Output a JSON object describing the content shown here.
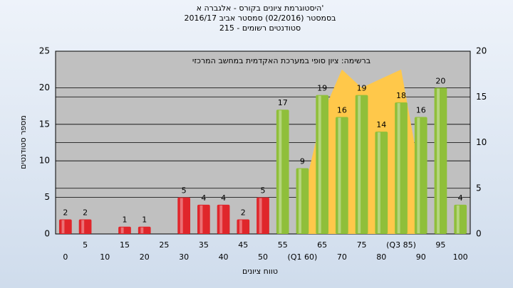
{
  "chart_data": {
    "type": "bar",
    "title": [
      "היסטוגרמת ציונים בקורס - אלגברה א'",
      "בסמסטר (02/2016)  סמסטר אביב 2016/17",
      "סטודנטים רשומים - 215"
    ],
    "annotation": "ברשימה: ציון סופי במערכת האקדמית במחשב המרכזי",
    "x_label": "טווח ציונים",
    "y_label": "מספר סטודנטים",
    "categories": [
      "0",
      "5",
      "10",
      "15",
      "20",
      "25",
      "30",
      "35",
      "40",
      "45",
      "50",
      "55",
      "(Q1 60)",
      "65",
      "70",
      "75",
      "80",
      "(Q3 85)",
      "90",
      "95",
      "100"
    ],
    "values": [
      2,
      2,
      null,
      1,
      1,
      null,
      5,
      4,
      4,
      2,
      5,
      17,
      9,
      19,
      16,
      19,
      14,
      18,
      16,
      20,
      4
    ],
    "bar_colors": [
      "#e0262b",
      "#e0262b",
      "#e0262b",
      "#e0262b",
      "#e0262b",
      "#e0262b",
      "#e0262b",
      "#e0262b",
      "#e0262b",
      "#e0262b",
      "#e0262b",
      "#8fbf3a",
      "#8fbf3a",
      "#8fbf3a",
      "#8fbf3a",
      "#8fbf3a",
      "#8fbf3a",
      "#8fbf3a",
      "#8fbf3a",
      "#8fbf3a",
      "#8fbf3a"
    ],
    "area": {
      "axis": "y2",
      "color": "#ffc84a",
      "values": [
        null,
        null,
        null,
        null,
        null,
        null,
        null,
        null,
        null,
        null,
        null,
        null,
        4,
        13,
        18,
        16,
        17,
        18,
        6,
        null,
        null
      ]
    },
    "ylim": [
      0,
      25
    ],
    "yticks": [
      0,
      5,
      10,
      15,
      20,
      25
    ],
    "y2lim": [
      0,
      20
    ],
    "y2ticks": [
      0,
      5,
      10,
      15,
      20
    ],
    "grid": true
  }
}
